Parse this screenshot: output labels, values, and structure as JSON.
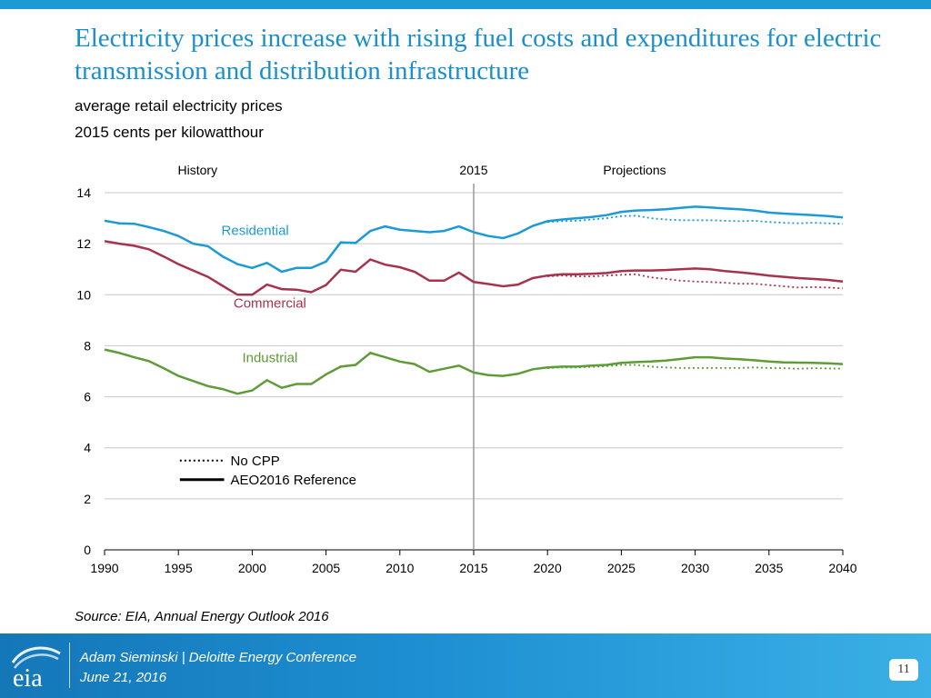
{
  "slide": {
    "title": "Electricity prices increase with rising fuel costs and expenditures for electric transmission and distribution infrastructure",
    "subtitle_line1": "average retail electricity prices",
    "subtitle_line2": "2015 cents per kilowatthour",
    "source": "Source:  EIA, Annual Energy Outlook 2016"
  },
  "footer": {
    "presenter": "Adam Sieminski | Deloitte Energy Conference",
    "date": "June 21, 2016",
    "page_number": "11",
    "logo_text": "eia"
  },
  "colors": {
    "title": "#1b8fcc",
    "residential": "#1b9ad6",
    "commercial": "#a6334b",
    "industrial": "#5e9c37",
    "grid": "#c8c8c8",
    "divider": "#999999"
  },
  "chart_data": {
    "type": "line",
    "title": "",
    "xlabel": "",
    "ylabel": "2015 cents per kilowatthour",
    "xlim": [
      1990,
      2040
    ],
    "ylim": [
      0,
      14
    ],
    "x_ticks": [
      "1990",
      "1995",
      "2000",
      "2005",
      "2010",
      "2015",
      "2020",
      "2025",
      "2030",
      "2035",
      "2040"
    ],
    "y_ticks": [
      "0",
      "2",
      "4",
      "6",
      "8",
      "10",
      "12",
      "14"
    ],
    "grid": true,
    "divider_year": 2015,
    "region_labels": {
      "history": "History",
      "divider": "2015",
      "projections": "Projections"
    },
    "legend": {
      "placement": "bottom-left",
      "no_cpp": "No CPP",
      "reference": "AEO2016 Reference"
    },
    "series": [
      {
        "name": "Residential",
        "label": "Residential",
        "color": "#1b9ad6",
        "history": [
          [
            1990,
            12.9
          ],
          [
            1991,
            12.8
          ],
          [
            1992,
            12.78
          ],
          [
            1993,
            12.65
          ],
          [
            1994,
            12.5
          ],
          [
            1995,
            12.3
          ],
          [
            1996,
            12.0
          ],
          [
            1997,
            11.9
          ],
          [
            1998,
            11.5
          ],
          [
            1999,
            11.2
          ],
          [
            2000,
            11.05
          ],
          [
            2001,
            11.25
          ],
          [
            2002,
            10.9
          ],
          [
            2003,
            11.05
          ],
          [
            2004,
            11.05
          ],
          [
            2005,
            11.3
          ],
          [
            2006,
            12.05
          ],
          [
            2007,
            12.03
          ],
          [
            2008,
            12.5
          ],
          [
            2009,
            12.68
          ],
          [
            2010,
            12.55
          ],
          [
            2011,
            12.5
          ],
          [
            2012,
            12.45
          ],
          [
            2013,
            12.5
          ],
          [
            2014,
            12.68
          ],
          [
            2015,
            12.45
          ]
        ],
        "reference": [
          [
            2015,
            12.45
          ],
          [
            2016,
            12.3
          ],
          [
            2017,
            12.22
          ],
          [
            2018,
            12.4
          ],
          [
            2019,
            12.7
          ],
          [
            2020,
            12.88
          ],
          [
            2021,
            12.95
          ],
          [
            2022,
            13.0
          ],
          [
            2023,
            13.05
          ],
          [
            2024,
            13.12
          ],
          [
            2025,
            13.25
          ],
          [
            2026,
            13.3
          ],
          [
            2027,
            13.32
          ],
          [
            2028,
            13.35
          ],
          [
            2029,
            13.4
          ],
          [
            2030,
            13.45
          ],
          [
            2031,
            13.42
          ],
          [
            2032,
            13.38
          ],
          [
            2033,
            13.35
          ],
          [
            2034,
            13.3
          ],
          [
            2035,
            13.22
          ],
          [
            2036,
            13.18
          ],
          [
            2037,
            13.15
          ],
          [
            2038,
            13.12
          ],
          [
            2039,
            13.08
          ],
          [
            2040,
            13.03
          ]
        ],
        "no_cpp": [
          [
            2020,
            12.85
          ],
          [
            2021,
            12.88
          ],
          [
            2022,
            12.9
          ],
          [
            2023,
            12.95
          ],
          [
            2024,
            13.0
          ],
          [
            2025,
            13.08
          ],
          [
            2026,
            13.1
          ],
          [
            2027,
            13.0
          ],
          [
            2028,
            12.95
          ],
          [
            2029,
            12.92
          ],
          [
            2030,
            12.92
          ],
          [
            2031,
            12.92
          ],
          [
            2032,
            12.9
          ],
          [
            2033,
            12.88
          ],
          [
            2034,
            12.9
          ],
          [
            2035,
            12.85
          ],
          [
            2036,
            12.82
          ],
          [
            2037,
            12.8
          ],
          [
            2038,
            12.82
          ],
          [
            2039,
            12.8
          ],
          [
            2040,
            12.78
          ]
        ]
      },
      {
        "name": "Commercial",
        "label": "Commercial",
        "color": "#a6334b",
        "history": [
          [
            1990,
            12.1
          ],
          [
            1991,
            12.0
          ],
          [
            1992,
            11.92
          ],
          [
            1993,
            11.78
          ],
          [
            1994,
            11.5
          ],
          [
            1995,
            11.2
          ],
          [
            1996,
            10.95
          ],
          [
            1997,
            10.7
          ],
          [
            1998,
            10.35
          ],
          [
            1999,
            10.0
          ],
          [
            2000,
            10.0
          ],
          [
            2001,
            10.4
          ],
          [
            2002,
            10.22
          ],
          [
            2003,
            10.2
          ],
          [
            2004,
            10.1
          ],
          [
            2005,
            10.38
          ],
          [
            2006,
            10.98
          ],
          [
            2007,
            10.9
          ],
          [
            2008,
            11.38
          ],
          [
            2009,
            11.18
          ],
          [
            2010,
            11.08
          ],
          [
            2011,
            10.9
          ],
          [
            2012,
            10.55
          ],
          [
            2013,
            10.55
          ],
          [
            2014,
            10.87
          ],
          [
            2015,
            10.5
          ]
        ],
        "reference": [
          [
            2015,
            10.5
          ],
          [
            2016,
            10.42
          ],
          [
            2017,
            10.33
          ],
          [
            2018,
            10.4
          ],
          [
            2019,
            10.65
          ],
          [
            2020,
            10.75
          ],
          [
            2021,
            10.8
          ],
          [
            2022,
            10.8
          ],
          [
            2023,
            10.82
          ],
          [
            2024,
            10.85
          ],
          [
            2025,
            10.93
          ],
          [
            2026,
            10.95
          ],
          [
            2027,
            10.95
          ],
          [
            2028,
            10.97
          ],
          [
            2029,
            11.0
          ],
          [
            2030,
            11.03
          ],
          [
            2031,
            11.0
          ],
          [
            2032,
            10.93
          ],
          [
            2033,
            10.88
          ],
          [
            2034,
            10.82
          ],
          [
            2035,
            10.75
          ],
          [
            2036,
            10.7
          ],
          [
            2037,
            10.65
          ],
          [
            2038,
            10.62
          ],
          [
            2039,
            10.58
          ],
          [
            2040,
            10.52
          ]
        ],
        "no_cpp": [
          [
            2020,
            10.72
          ],
          [
            2021,
            10.75
          ],
          [
            2022,
            10.72
          ],
          [
            2023,
            10.72
          ],
          [
            2024,
            10.75
          ],
          [
            2025,
            10.78
          ],
          [
            2026,
            10.8
          ],
          [
            2027,
            10.68
          ],
          [
            2028,
            10.62
          ],
          [
            2029,
            10.55
          ],
          [
            2030,
            10.52
          ],
          [
            2031,
            10.5
          ],
          [
            2032,
            10.47
          ],
          [
            2033,
            10.43
          ],
          [
            2034,
            10.43
          ],
          [
            2035,
            10.38
          ],
          [
            2036,
            10.33
          ],
          [
            2037,
            10.28
          ],
          [
            2038,
            10.3
          ],
          [
            2039,
            10.28
          ],
          [
            2040,
            10.25
          ]
        ]
      },
      {
        "name": "Industrial",
        "label": "Industrial",
        "color": "#5e9c37",
        "history": [
          [
            1990,
            7.85
          ],
          [
            1991,
            7.72
          ],
          [
            1992,
            7.55
          ],
          [
            1993,
            7.4
          ],
          [
            1994,
            7.12
          ],
          [
            1995,
            6.82
          ],
          [
            1996,
            6.62
          ],
          [
            1997,
            6.42
          ],
          [
            1998,
            6.3
          ],
          [
            1999,
            6.12
          ],
          [
            2000,
            6.25
          ],
          [
            2001,
            6.65
          ],
          [
            2002,
            6.35
          ],
          [
            2003,
            6.5
          ],
          [
            2004,
            6.5
          ],
          [
            2005,
            6.88
          ],
          [
            2006,
            7.18
          ],
          [
            2007,
            7.25
          ],
          [
            2008,
            7.72
          ],
          [
            2009,
            7.55
          ],
          [
            2010,
            7.38
          ],
          [
            2011,
            7.28
          ],
          [
            2012,
            6.98
          ],
          [
            2013,
            7.1
          ],
          [
            2014,
            7.22
          ],
          [
            2015,
            6.95
          ]
        ],
        "reference": [
          [
            2015,
            6.95
          ],
          [
            2016,
            6.85
          ],
          [
            2017,
            6.82
          ],
          [
            2018,
            6.9
          ],
          [
            2019,
            7.08
          ],
          [
            2020,
            7.15
          ],
          [
            2021,
            7.18
          ],
          [
            2022,
            7.18
          ],
          [
            2023,
            7.22
          ],
          [
            2024,
            7.25
          ],
          [
            2025,
            7.33
          ],
          [
            2026,
            7.36
          ],
          [
            2027,
            7.38
          ],
          [
            2028,
            7.42
          ],
          [
            2029,
            7.48
          ],
          [
            2030,
            7.55
          ],
          [
            2031,
            7.55
          ],
          [
            2032,
            7.5
          ],
          [
            2033,
            7.47
          ],
          [
            2034,
            7.43
          ],
          [
            2035,
            7.38
          ],
          [
            2036,
            7.35
          ],
          [
            2037,
            7.34
          ],
          [
            2038,
            7.33
          ],
          [
            2039,
            7.31
          ],
          [
            2040,
            7.28
          ]
        ],
        "no_cpp": [
          [
            2020,
            7.12
          ],
          [
            2021,
            7.15
          ],
          [
            2022,
            7.15
          ],
          [
            2023,
            7.17
          ],
          [
            2024,
            7.2
          ],
          [
            2025,
            7.25
          ],
          [
            2026,
            7.25
          ],
          [
            2027,
            7.18
          ],
          [
            2028,
            7.15
          ],
          [
            2029,
            7.13
          ],
          [
            2030,
            7.13
          ],
          [
            2031,
            7.13
          ],
          [
            2032,
            7.13
          ],
          [
            2033,
            7.13
          ],
          [
            2034,
            7.15
          ],
          [
            2035,
            7.13
          ],
          [
            2036,
            7.12
          ],
          [
            2037,
            7.1
          ],
          [
            2038,
            7.12
          ],
          [
            2039,
            7.11
          ],
          [
            2040,
            7.1
          ]
        ]
      }
    ]
  }
}
